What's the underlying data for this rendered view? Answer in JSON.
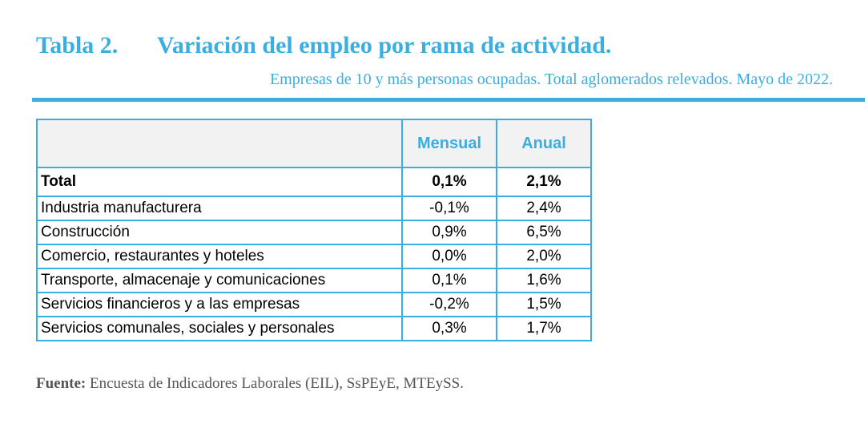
{
  "title": {
    "number": "Tabla 2.",
    "text": "Variación del empleo por rama de actividad."
  },
  "subtitle": "Empresas de 10 y más personas ocupadas. Total aglomerados relevados. Mayo de 2022.",
  "table": {
    "headers": [
      "",
      "Mensual",
      "Anual"
    ],
    "rows": [
      {
        "label": "Total",
        "mensual": "0,1%",
        "anual": "2,1%"
      },
      {
        "label": "Industria manufacturera",
        "mensual": "-0,1%",
        "anual": "2,4%"
      },
      {
        "label": "Construcción",
        "mensual": "0,9%",
        "anual": "6,5%"
      },
      {
        "label": "Comercio, restaurantes y hoteles",
        "mensual": "0,0%",
        "anual": "2,0%"
      },
      {
        "label": "Transporte, almacenaje y comunicaciones",
        "mensual": "0,1%",
        "anual": "1,6%"
      },
      {
        "label": "Servicios financieros y a las empresas",
        "mensual": "-0,2%",
        "anual": "1,5%"
      },
      {
        "label": "Servicios comunales, sociales y personales",
        "mensual": "0,3%",
        "anual": "1,7%"
      }
    ]
  },
  "source": {
    "label": "Fuente:",
    "text": "Encuesta de Indicadores Laborales (EIL), SsPEyE, MTEySS."
  },
  "colors": {
    "accent": "#3aaee0",
    "header_bg": "#f2f2f2",
    "source_text": "#555555"
  }
}
